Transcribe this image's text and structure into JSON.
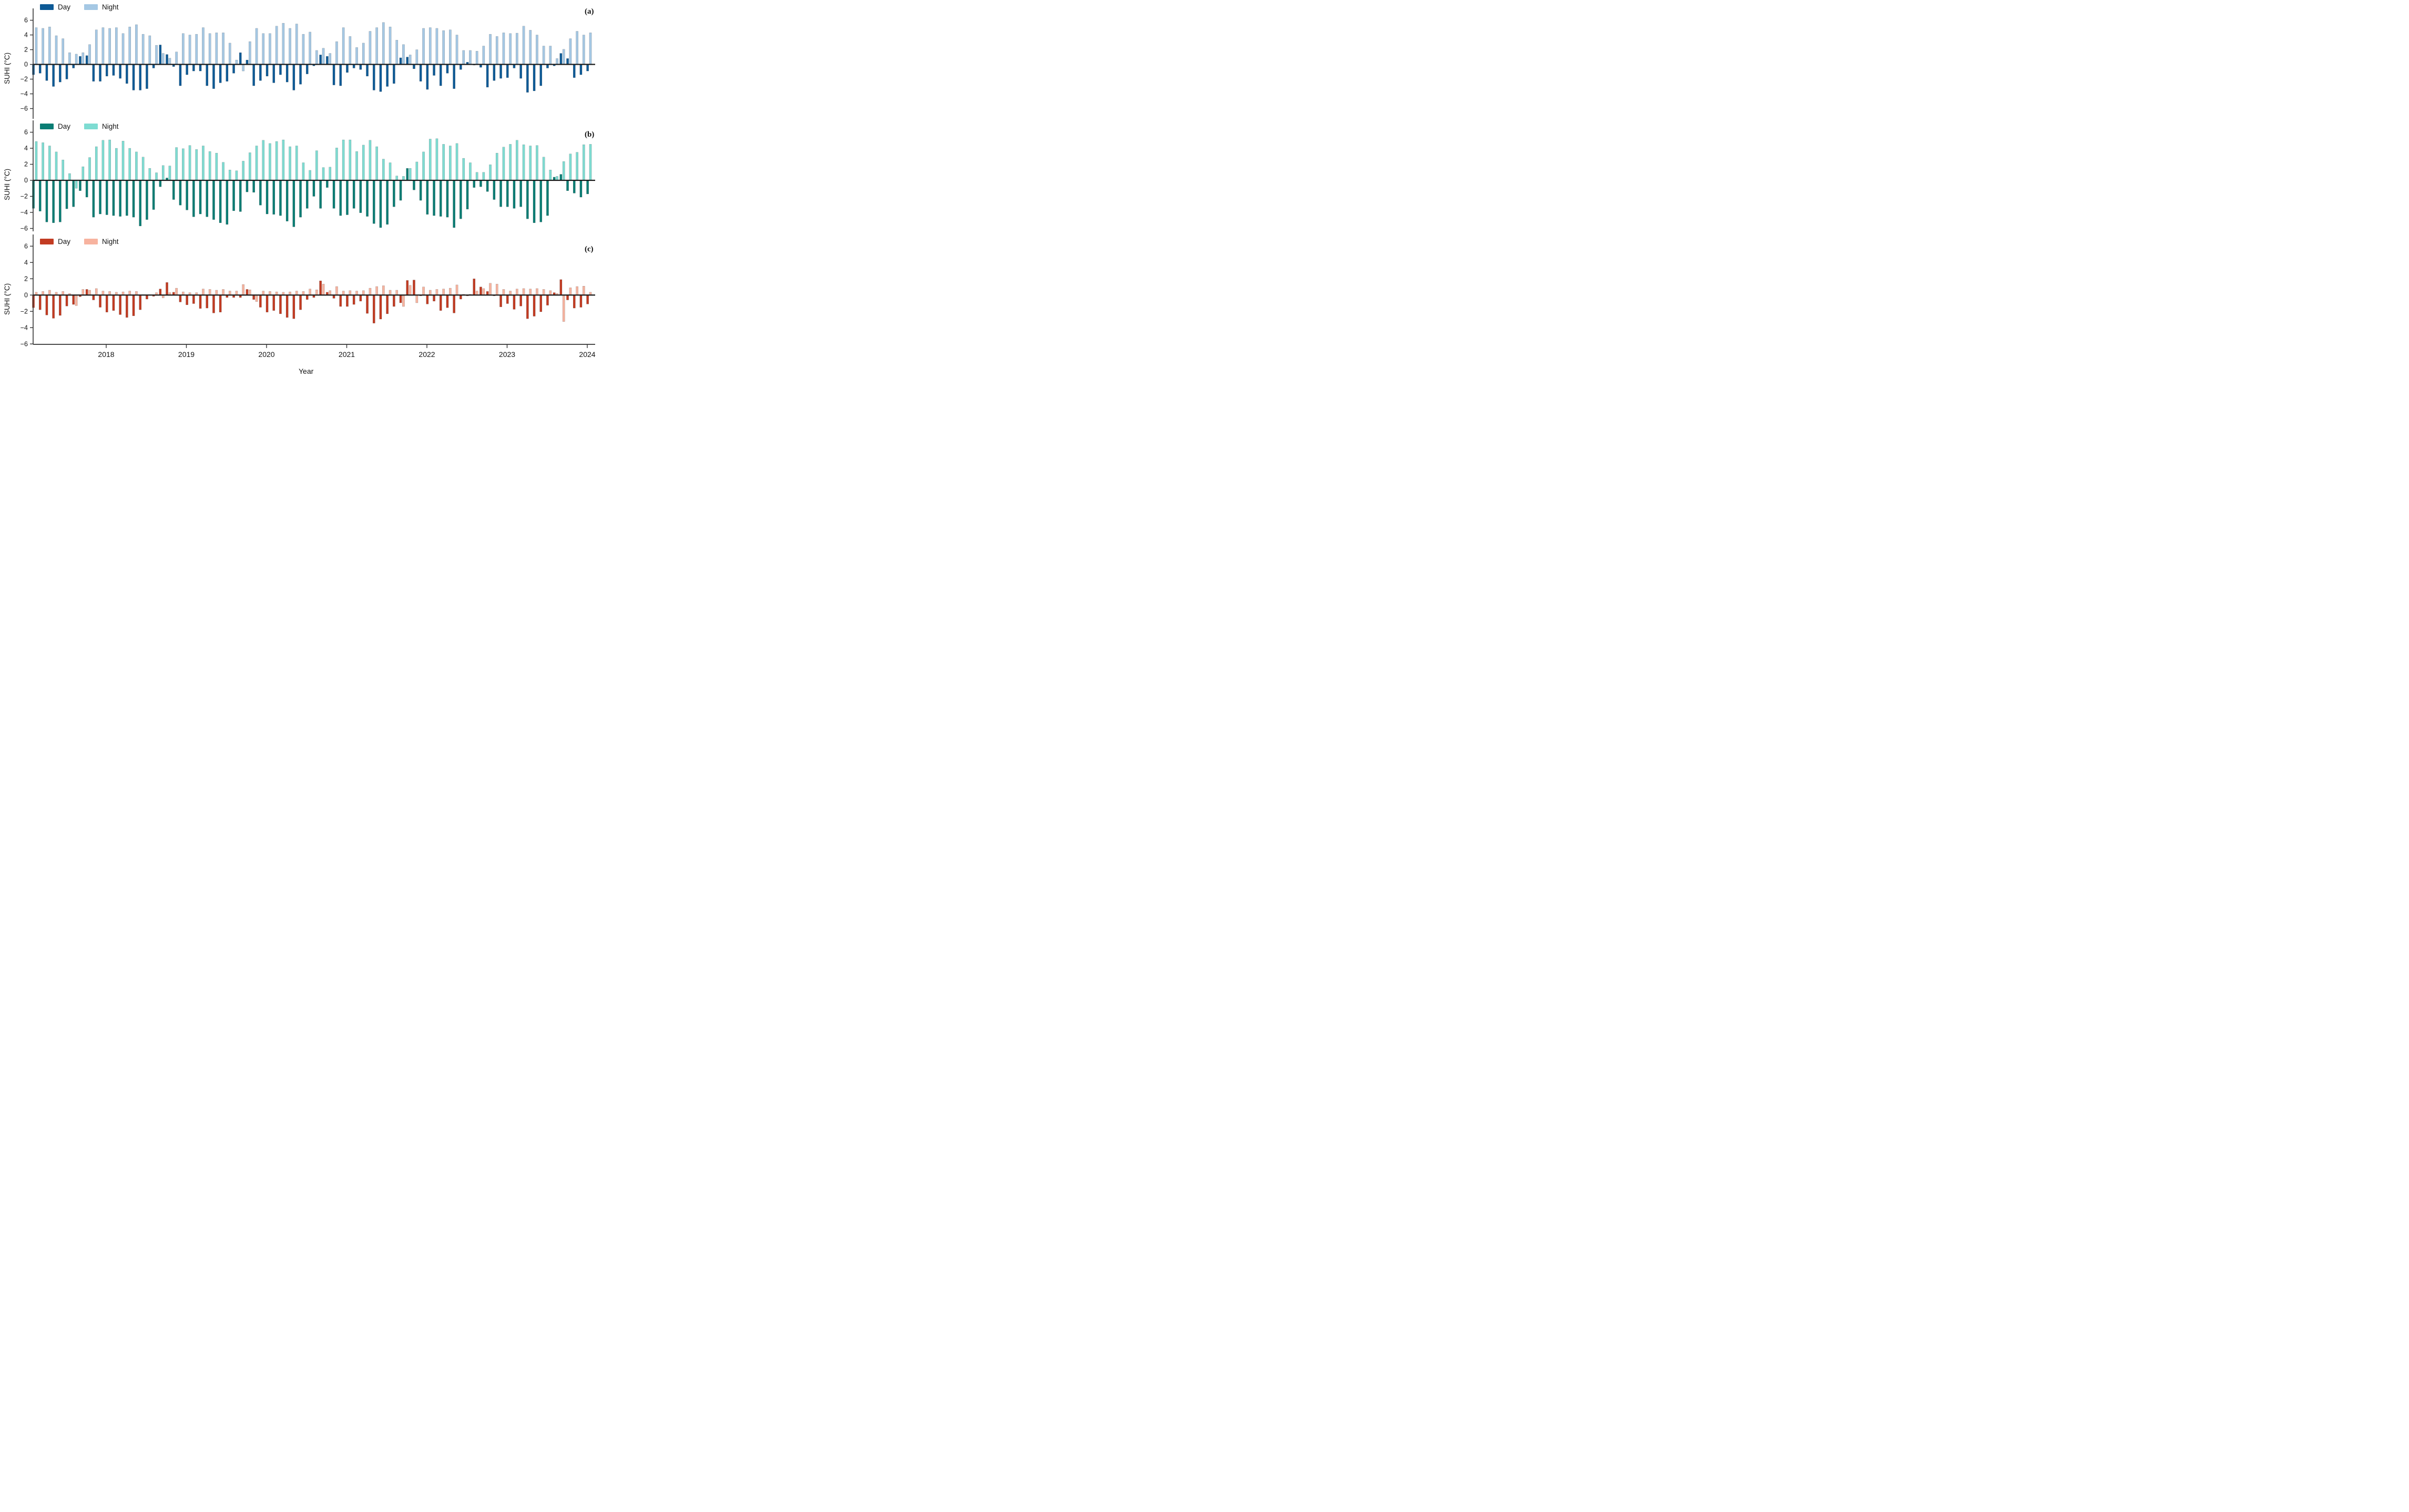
{
  "figure": {
    "xlabel": "Year",
    "ylabel": "SUHI (°C)",
    "x_tick_labels": [
      "2018",
      "2019",
      "2020",
      "2021",
      "2022",
      "2023",
      "2024"
    ],
    "y_tick_labels": [
      "6",
      "4",
      "2",
      "0",
      "−2",
      "−4",
      "−6"
    ]
  },
  "chart_data": {
    "type": "bar",
    "title": "",
    "xlabel": "Year",
    "ylabel": "SUHI (°C)",
    "ylim": [
      -7,
      7
    ],
    "yticks": [
      6,
      4,
      2,
      0,
      -2,
      -4,
      -6
    ],
    "x_ticks_years": [
      2018,
      2019,
      2020,
      2021,
      2022,
      2023,
      2024
    ],
    "legend_position": "upper left",
    "grid": false,
    "months": [
      "2017-01",
      "2017-02",
      "2017-03",
      "2017-04",
      "2017-05",
      "2017-06",
      "2017-07",
      "2017-08",
      "2017-09",
      "2017-10",
      "2017-11",
      "2017-12",
      "2018-01",
      "2018-02",
      "2018-03",
      "2018-04",
      "2018-05",
      "2018-06",
      "2018-07",
      "2018-08",
      "2018-09",
      "2018-10",
      "2018-11",
      "2018-12",
      "2019-01",
      "2019-02",
      "2019-03",
      "2019-04",
      "2019-05",
      "2019-06",
      "2019-07",
      "2019-08",
      "2019-09",
      "2019-10",
      "2019-11",
      "2019-12",
      "2020-01",
      "2020-02",
      "2020-03",
      "2020-04",
      "2020-05",
      "2020-06",
      "2020-07",
      "2020-08",
      "2020-09",
      "2020-10",
      "2020-11",
      "2020-12",
      "2021-01",
      "2021-02",
      "2021-03",
      "2021-04",
      "2021-05",
      "2021-06",
      "2021-07",
      "2021-08",
      "2021-09",
      "2021-10",
      "2021-11",
      "2021-12",
      "2022-01",
      "2022-02",
      "2022-03",
      "2022-04",
      "2022-05",
      "2022-06",
      "2022-07",
      "2022-08",
      "2022-09",
      "2022-10",
      "2022-11",
      "2022-12",
      "2023-01",
      "2023-02",
      "2023-03",
      "2023-04",
      "2023-05",
      "2023-06",
      "2023-07",
      "2023-08",
      "2023-09",
      "2023-10",
      "2023-11",
      "2023-12"
    ],
    "panels": [
      {
        "id": "a",
        "tag": "(a)",
        "legend": {
          "day": "Day",
          "night": "Night"
        },
        "colors": {
          "day": "#0d5a96",
          "night": "#a5c8e4"
        },
        "series": [
          {
            "name": "Day",
            "values": [
              -1.4,
              -1.2,
              -2.2,
              -3.0,
              -2.4,
              -2.0,
              -0.5,
              1.1,
              1.2,
              -2.3,
              -2.3,
              -1.6,
              -1.5,
              -1.9,
              -2.6,
              -3.5,
              -3.5,
              -3.3,
              -0.5,
              2.65,
              1.35,
              -0.3,
              -2.9,
              -1.4,
              -0.9,
              -0.9,
              -2.9,
              -3.3,
              -2.5,
              -2.3,
              -1.2,
              1.6,
              0.6,
              -2.9,
              -2.2,
              -1.6,
              -2.5,
              -1.4,
              -2.4,
              -3.5,
              -2.7,
              -1.3,
              -0.2,
              1.3,
              1.1,
              -2.8,
              -2.9,
              -1.1,
              -0.5,
              -0.7,
              -1.6,
              -3.5,
              -3.7,
              -3.0,
              -2.6,
              0.9,
              1.0,
              -0.6,
              -2.3,
              -3.4,
              -1.5,
              -2.9,
              -1.2,
              -3.3,
              -0.7,
              0.3,
              -0.1,
              -0.4,
              -3.1,
              -2.2,
              -1.9,
              -1.8,
              -0.5,
              -1.9,
              -3.8,
              -3.6,
              -2.9,
              -0.5,
              -0.2,
              1.5,
              0.8,
              -1.8,
              -1.4,
              -0.9
            ]
          },
          {
            "name": "Night",
            "values": [
              5.0,
              4.9,
              5.1,
              3.9,
              3.5,
              1.6,
              1.4,
              1.6,
              2.7,
              4.7,
              5.0,
              4.9,
              5.0,
              4.2,
              5.1,
              5.4,
              4.1,
              3.9,
              2.6,
              1.5,
              0.85,
              1.7,
              4.2,
              4.0,
              4.1,
              5.0,
              4.2,
              4.3,
              4.3,
              2.9,
              0.6,
              -0.9,
              3.1,
              4.9,
              4.2,
              4.2,
              5.2,
              5.6,
              4.9,
              5.5,
              4.1,
              4.4,
              1.9,
              2.2,
              1.5,
              3.1,
              5.0,
              3.8,
              2.3,
              2.9,
              4.5,
              5.0,
              5.7,
              5.1,
              3.3,
              2.7,
              1.3,
              2.0,
              4.9,
              5.0,
              4.9,
              4.6,
              4.7,
              4.0,
              1.9,
              1.9,
              1.8,
              2.5,
              4.1,
              3.8,
              4.3,
              4.2,
              4.25,
              5.2,
              4.65,
              4.0,
              2.5,
              2.5,
              0.8,
              2.05,
              3.5,
              4.5,
              4.0,
              4.3
            ]
          }
        ]
      },
      {
        "id": "b",
        "tag": "(b)",
        "legend": {
          "day": "Day",
          "night": "Night"
        },
        "colors": {
          "day": "#0a7d74",
          "night": "#7edcd2"
        },
        "series": [
          {
            "name": "Day",
            "values": [
              -3.5,
              -3.85,
              -5.2,
              -5.3,
              -5.2,
              -3.55,
              -3.3,
              -1.3,
              -2.1,
              -4.6,
              -4.2,
              -4.3,
              -4.4,
              -4.5,
              -4.4,
              -4.6,
              -5.7,
              -4.9,
              -3.65,
              -0.8,
              0.3,
              -2.4,
              -3.1,
              -3.7,
              -4.55,
              -4.2,
              -4.55,
              -4.9,
              -5.3,
              -5.5,
              -3.8,
              -3.9,
              -1.45,
              -1.5,
              -3.1,
              -4.2,
              -4.25,
              -4.4,
              -5.1,
              -5.8,
              -4.6,
              -3.5,
              -2.0,
              -3.5,
              -0.9,
              -3.5,
              -4.4,
              -4.3,
              -3.5,
              -4.05,
              -4.5,
              -5.4,
              -5.9,
              -5.5,
              -3.3,
              -2.5,
              1.5,
              -1.2,
              -2.5,
              -4.25,
              -4.4,
              -4.5,
              -4.6,
              -5.9,
              -4.8,
              -3.6,
              -0.9,
              -0.8,
              -1.4,
              -2.4,
              -3.3,
              -3.3,
              -3.5,
              -3.3,
              -4.8,
              -5.3,
              -5.2,
              -4.4,
              0.4,
              0.75,
              -1.3,
              -1.6,
              -2.1,
              -1.7
            ]
          },
          {
            "name": "Night",
            "values": [
              4.85,
              4.7,
              4.3,
              3.55,
              2.55,
              0.85,
              -1.0,
              1.7,
              2.85,
              4.2,
              5.0,
              5.05,
              4.0,
              4.9,
              4.0,
              3.55,
              2.9,
              1.5,
              0.95,
              1.85,
              1.8,
              4.1,
              3.95,
              4.35,
              3.85,
              4.3,
              3.6,
              3.4,
              2.25,
              1.3,
              1.2,
              2.4,
              3.45,
              4.3,
              5.0,
              4.6,
              4.85,
              5.05,
              4.2,
              4.3,
              2.2,
              1.25,
              3.7,
              1.6,
              1.65,
              4.05,
              5.05,
              5.05,
              3.6,
              4.4,
              5.0,
              4.2,
              2.65,
              2.2,
              0.55,
              0.5,
              1.5,
              2.3,
              3.55,
              5.15,
              5.2,
              4.5,
              4.3,
              4.6,
              2.75,
              2.2,
              1.0,
              1.0,
              1.95,
              3.4,
              4.15,
              4.5,
              5.0,
              4.45,
              4.3,
              4.35,
              2.9,
              1.3,
              0.5,
              2.35,
              3.3,
              3.5,
              4.45,
              4.5
            ]
          }
        ]
      },
      {
        "id": "c",
        "tag": "(c)",
        "legend": {
          "day": "Day",
          "night": "Night"
        },
        "colors": {
          "day": "#c23b22",
          "night": "#f7b39f"
        },
        "series": [
          {
            "name": "Day",
            "values": [
              -1.55,
              -1.8,
              -2.45,
              -2.85,
              -2.5,
              -1.35,
              -1.15,
              -0.2,
              0.7,
              -0.6,
              -1.5,
              -2.1,
              -1.9,
              -2.4,
              -2.75,
              -2.55,
              -1.8,
              -0.5,
              -0.15,
              0.75,
              1.55,
              0.35,
              -0.85,
              -1.2,
              -1.05,
              -1.65,
              -1.6,
              -2.2,
              -2.1,
              -0.3,
              -0.3,
              -0.3,
              0.7,
              -0.55,
              -1.5,
              -2.1,
              -1.9,
              -2.3,
              -2.75,
              -2.9,
              -1.8,
              -0.55,
              -0.3,
              1.75,
              0.35,
              -0.4,
              -1.4,
              -1.4,
              -1.15,
              -0.75,
              -2.25,
              -3.45,
              -2.95,
              -2.3,
              -1.4,
              -0.95,
              1.8,
              1.85,
              -0.1,
              -1.1,
              -0.75,
              -1.9,
              -1.55,
              -2.2,
              -0.5,
              -0.1,
              2.0,
              1.0,
              0.45,
              -0.1,
              -1.45,
              -1.05,
              -1.75,
              -1.35,
              -2.9,
              -2.6,
              -2.05,
              -1.25,
              0.3,
              1.9,
              -0.6,
              -1.6,
              -1.5,
              -1.1
            ]
          },
          {
            "name": "Night",
            "values": [
              0.35,
              0.45,
              0.6,
              0.35,
              0.45,
              0.2,
              -1.3,
              0.7,
              0.6,
              0.8,
              0.5,
              0.45,
              0.35,
              0.4,
              0.5,
              0.45,
              0.05,
              0.05,
              0.3,
              -0.35,
              0.3,
              0.85,
              0.4,
              0.3,
              0.3,
              0.75,
              0.7,
              0.6,
              0.7,
              0.5,
              0.5,
              1.3,
              0.65,
              -0.8,
              0.5,
              0.45,
              0.4,
              0.35,
              0.4,
              0.5,
              0.45,
              0.75,
              0.65,
              1.35,
              0.55,
              1.05,
              0.5,
              0.55,
              0.5,
              0.55,
              0.85,
              1.05,
              1.15,
              0.6,
              0.6,
              -1.4,
              1.2,
              -0.95,
              1.0,
              0.6,
              0.7,
              0.75,
              0.85,
              1.25,
              0.1,
              0.1,
              0.5,
              0.8,
              1.45,
              1.35,
              0.7,
              0.5,
              0.75,
              0.8,
              0.75,
              0.8,
              0.7,
              0.55,
              0.2,
              -3.25,
              0.9,
              1.05,
              1.1,
              0.35
            ]
          }
        ]
      }
    ]
  }
}
